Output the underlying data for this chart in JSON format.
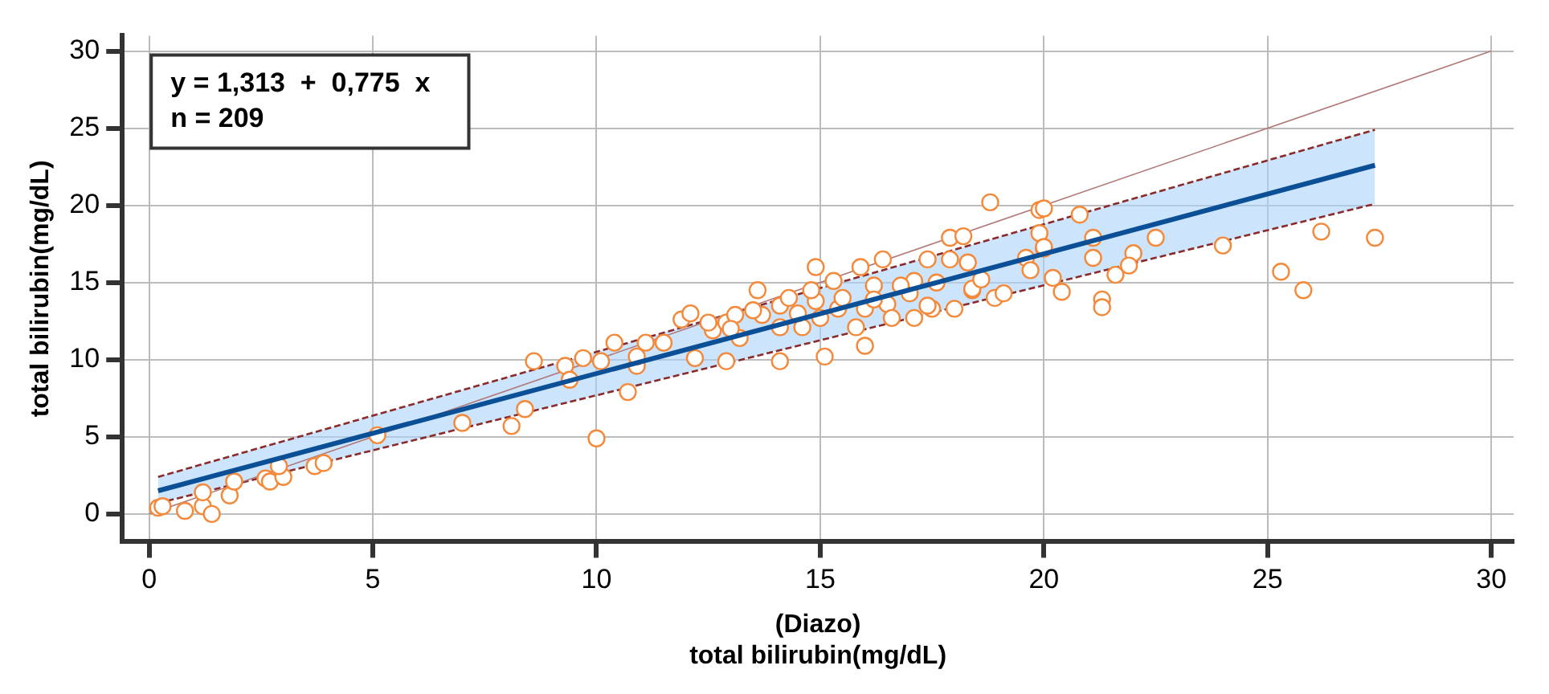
{
  "chart_data": {
    "type": "scatter",
    "xlabel": "(Diazo)\ntotal bilirubin(mg/dL)",
    "ylabel": "total bilirubin(mg/dL)",
    "annotations": [
      "y = 1,313  +  0,775  x",
      "n = 209"
    ],
    "xlim": [
      -0.6,
      30.5
    ],
    "ylim": [
      -1.8,
      31
    ],
    "xticks": [
      0,
      5,
      10,
      15,
      20,
      25,
      30
    ],
    "yticks": [
      0,
      5,
      10,
      15,
      20,
      25,
      30
    ],
    "grid": true,
    "legend": false,
    "series": [
      {
        "type": "line",
        "marker": "none",
        "line_style": "solid",
        "color": "#b07878",
        "x": [
          0,
          30
        ],
        "values": [
          0,
          30
        ]
      },
      {
        "type": "line",
        "marker": "none",
        "line_style": "dashed",
        "color": "#8b2a2a",
        "x": [
          0.2,
          27.4
        ],
        "values": [
          0.7,
          20.1
        ]
      },
      {
        "type": "line",
        "marker": "none",
        "line_style": "dashed",
        "color": "#8b2a2a",
        "x": [
          0.2,
          27.4
        ],
        "values": [
          2.4,
          24.9
        ]
      },
      {
        "type": "line",
        "marker": "none",
        "line_style": "solid",
        "color": "#0b4f96",
        "x": [
          0.2,
          27.4
        ],
        "values": [
          1.5,
          22.6
        ],
        "lower": [
          0.7,
          20.1
        ],
        "upper": [
          2.4,
          24.9
        ]
      },
      {
        "marker": "circle",
        "color": "#f5893a",
        "x": [
          0.2,
          0.3,
          0.8,
          1.2,
          1.4,
          1.2,
          1.8,
          1.9,
          2.6,
          2.7,
          3.0,
          2.9,
          3.7,
          3.9,
          5.1,
          7.0,
          8.1,
          8.4,
          8.6,
          9.3,
          9.4,
          9.7,
          10.0,
          10.7,
          10.4,
          10.1,
          10.9,
          10.9,
          11.1,
          11.5,
          12.2,
          12.9,
          11.9,
          12.1,
          12.6,
          12.9,
          13.1,
          13.2,
          13.6,
          13.7,
          14.1,
          14.1,
          14.1,
          14.3,
          14.6,
          14.9,
          14.9,
          15.0,
          15.1,
          15.3,
          15.4,
          15.8,
          15.9,
          16.0,
          16.0,
          16.2,
          16.4,
          16.5,
          16.6,
          17.0,
          17.1,
          17.1,
          17.4,
          17.5,
          17.9,
          17.9,
          18.0,
          18.2,
          18.3,
          18.4,
          18.8,
          18.9,
          19.1,
          19.6,
          19.7,
          19.9,
          19.9,
          20.0,
          20.0,
          20.8,
          21.1,
          22.5,
          20.0,
          21.1,
          22.0,
          21.9,
          21.6,
          20.2,
          20.4,
          21.3,
          21.3,
          24.0,
          26.2,
          27.4,
          25.3,
          25.8,
          17.4,
          18.4,
          12.5,
          13.5,
          14.5,
          15.5,
          16.8,
          17.6,
          18.6,
          13.0,
          14.8,
          16.2
        ],
        "values": [
          0.4,
          0.5,
          0.2,
          0.5,
          0.0,
          1.4,
          1.2,
          2.1,
          2.3,
          2.1,
          2.4,
          3.1,
          3.1,
          3.3,
          5.1,
          5.9,
          5.7,
          6.8,
          9.9,
          9.6,
          8.7,
          10.1,
          4.9,
          7.9,
          11.1,
          9.9,
          9.6,
          10.2,
          11.1,
          11.1,
          10.1,
          9.9,
          12.6,
          13.0,
          11.9,
          12.4,
          12.9,
          11.4,
          14.5,
          12.9,
          13.5,
          12.1,
          9.9,
          14.0,
          12.1,
          16.0,
          13.8,
          12.7,
          10.2,
          15.1,
          13.3,
          12.1,
          16.0,
          10.9,
          13.3,
          14.8,
          16.5,
          13.6,
          12.7,
          14.3,
          12.7,
          15.1,
          16.5,
          13.3,
          17.9,
          16.5,
          13.3,
          18.0,
          16.3,
          14.5,
          20.2,
          14.0,
          14.3,
          16.6,
          15.8,
          19.7,
          18.2,
          17.2,
          19.8,
          19.4,
          17.9,
          17.9,
          17.3,
          16.6,
          16.9,
          16.1,
          15.5,
          15.3,
          14.4,
          13.9,
          13.4,
          17.4,
          18.3,
          17.9,
          15.7,
          14.5,
          13.5,
          14.6,
          12.4,
          13.2,
          13.0,
          14.0,
          14.8,
          15.0,
          15.2,
          12.0,
          14.5,
          13.9
        ]
      }
    ]
  }
}
